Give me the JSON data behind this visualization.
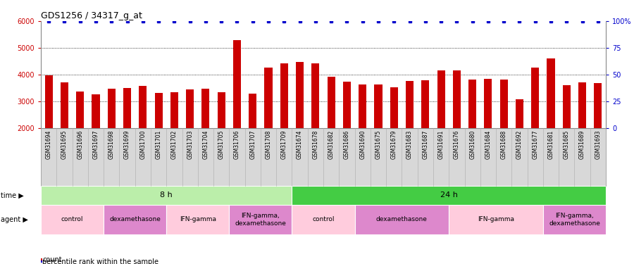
{
  "title": "GDS1256 / 34317_g_at",
  "samples": [
    "GSM31694",
    "GSM31695",
    "GSM31696",
    "GSM31697",
    "GSM31698",
    "GSM31699",
    "GSM31700",
    "GSM31701",
    "GSM31702",
    "GSM31703",
    "GSM31704",
    "GSM31705",
    "GSM31706",
    "GSM31707",
    "GSM31708",
    "GSM31709",
    "GSM31674",
    "GSM31678",
    "GSM31682",
    "GSM31686",
    "GSM31690",
    "GSM31675",
    "GSM31679",
    "GSM31683",
    "GSM31687",
    "GSM31691",
    "GSM31676",
    "GSM31680",
    "GSM31684",
    "GSM31688",
    "GSM31692",
    "GSM31677",
    "GSM31681",
    "GSM31685",
    "GSM31689",
    "GSM31693"
  ],
  "counts": [
    3970,
    3720,
    3380,
    3270,
    3480,
    3500,
    3590,
    3310,
    3330,
    3440,
    3480,
    3350,
    5280,
    3300,
    4270,
    4430,
    4480,
    4430,
    3920,
    3750,
    3620,
    3620,
    3530,
    3770,
    3790,
    4170,
    4160,
    3820,
    3840,
    3820,
    3070,
    4270,
    4610,
    3600,
    3700,
    3680
  ],
  "ylim_left": [
    2000,
    6000
  ],
  "ylim_right": [
    0,
    100
  ],
  "bar_color": "#cc0000",
  "percentile_color": "#0000cc",
  "bar_width": 0.5,
  "time_groups": [
    {
      "label": "8 h",
      "start": 0,
      "end": 16,
      "color": "#bbeeaa"
    },
    {
      "label": "24 h",
      "start": 16,
      "end": 36,
      "color": "#44cc44"
    }
  ],
  "agent_groups": [
    {
      "label": "control",
      "start": 0,
      "end": 4,
      "color": "#ffccdd"
    },
    {
      "label": "dexamethasone",
      "start": 4,
      "end": 8,
      "color": "#dd88cc"
    },
    {
      "label": "IFN-gamma",
      "start": 8,
      "end": 12,
      "color": "#ffccdd"
    },
    {
      "label": "IFN-gamma,\ndexamethasone",
      "start": 12,
      "end": 16,
      "color": "#dd88cc"
    },
    {
      "label": "control",
      "start": 16,
      "end": 20,
      "color": "#ffccdd"
    },
    {
      "label": "dexamethasone",
      "start": 20,
      "end": 26,
      "color": "#dd88cc"
    },
    {
      "label": "IFN-gamma",
      "start": 26,
      "end": 32,
      "color": "#ffccdd"
    },
    {
      "label": "IFN-gamma,\ndexamethasone",
      "start": 32,
      "end": 36,
      "color": "#dd88cc"
    }
  ],
  "time_label": "time",
  "agent_label": "agent",
  "legend_count_label": "count",
  "legend_percentile_label": "percentile rank within the sample",
  "yticks_left": [
    2000,
    3000,
    4000,
    5000,
    6000
  ],
  "yticks_right": [
    0,
    25,
    50,
    75,
    100
  ],
  "right_tick_labels": [
    "0",
    "25",
    "50",
    "75",
    "100%"
  ],
  "dotted_gridlines": [
    3000,
    4000,
    5000
  ],
  "xtick_bg_color": "#d8d8d8",
  "xtick_border_color": "#aaaaaa"
}
